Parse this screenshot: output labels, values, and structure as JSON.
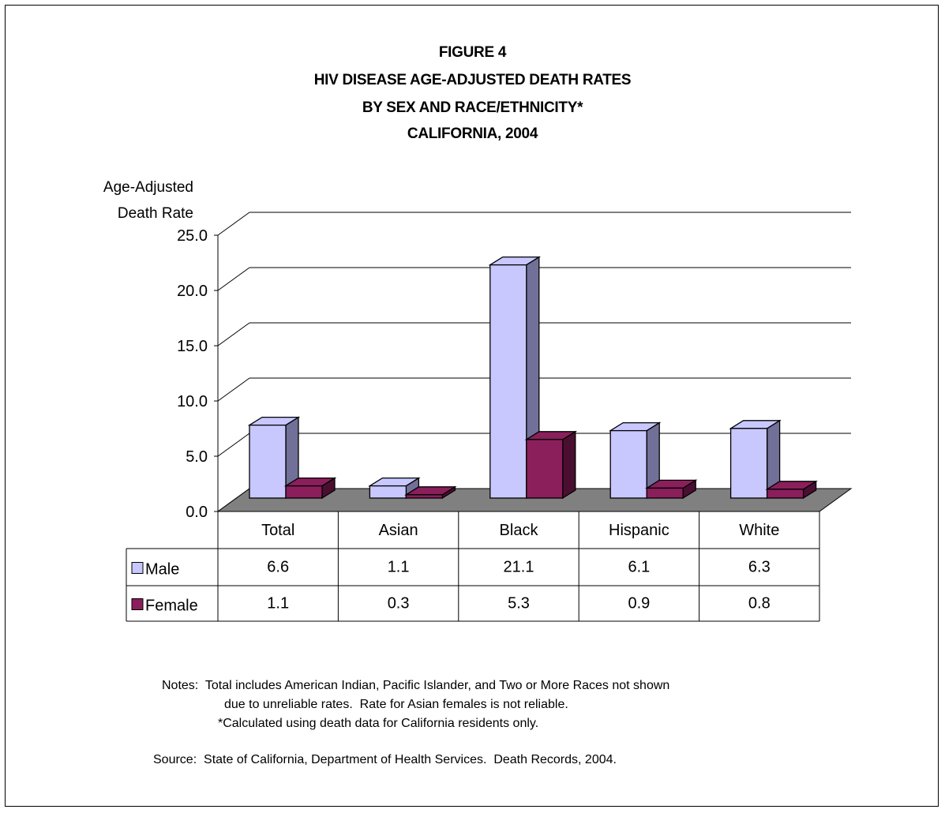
{
  "chart_data": {
    "type": "bar",
    "title_lines": [
      "FIGURE 4",
      "HIV DISEASE AGE-ADJUSTED DEATH RATES",
      "BY SEX AND RACE/ETHNICITY*",
      "CALIFORNIA, 2004"
    ],
    "ylabel_lines": [
      "Age-Adjusted",
      "Death Rate"
    ],
    "xlabel": "",
    "categories": [
      "Total",
      "Asian",
      "Black",
      "Hispanic",
      "White"
    ],
    "series": [
      {
        "name": "Male",
        "values": [
          6.6,
          1.1,
          21.1,
          6.1,
          6.3
        ],
        "value_labels": [
          "6.6",
          "1.1",
          "21.1",
          "6.1",
          "6.3"
        ],
        "color": "#c8c8ff",
        "side_color": "#707098"
      },
      {
        "name": "Female",
        "values": [
          1.1,
          0.3,
          5.3,
          0.9,
          0.8
        ],
        "value_labels": [
          "1.1",
          "0.3",
          "5.3",
          "0.9",
          "0.8"
        ],
        "color": "#8a1f5c",
        "side_color": "#4a0f30"
      }
    ],
    "ylim": [
      0,
      25
    ],
    "yticks": [
      "0.0",
      "5.0",
      "10.0",
      "15.0",
      "20.0",
      "25.0"
    ],
    "grid": true,
    "floor_color": "#808080",
    "data_table": true
  },
  "notes": {
    "line1": "Notes:  Total includes American Indian, Pacific Islander, and Two or More Races not shown",
    "line2": "due to unreliable rates.  Rate for Asian females is not reliable.",
    "line3": "*Calculated using death data for California residents only.",
    "source": "Source:  State of California, Department of Health Services.  Death Records, 2004."
  }
}
